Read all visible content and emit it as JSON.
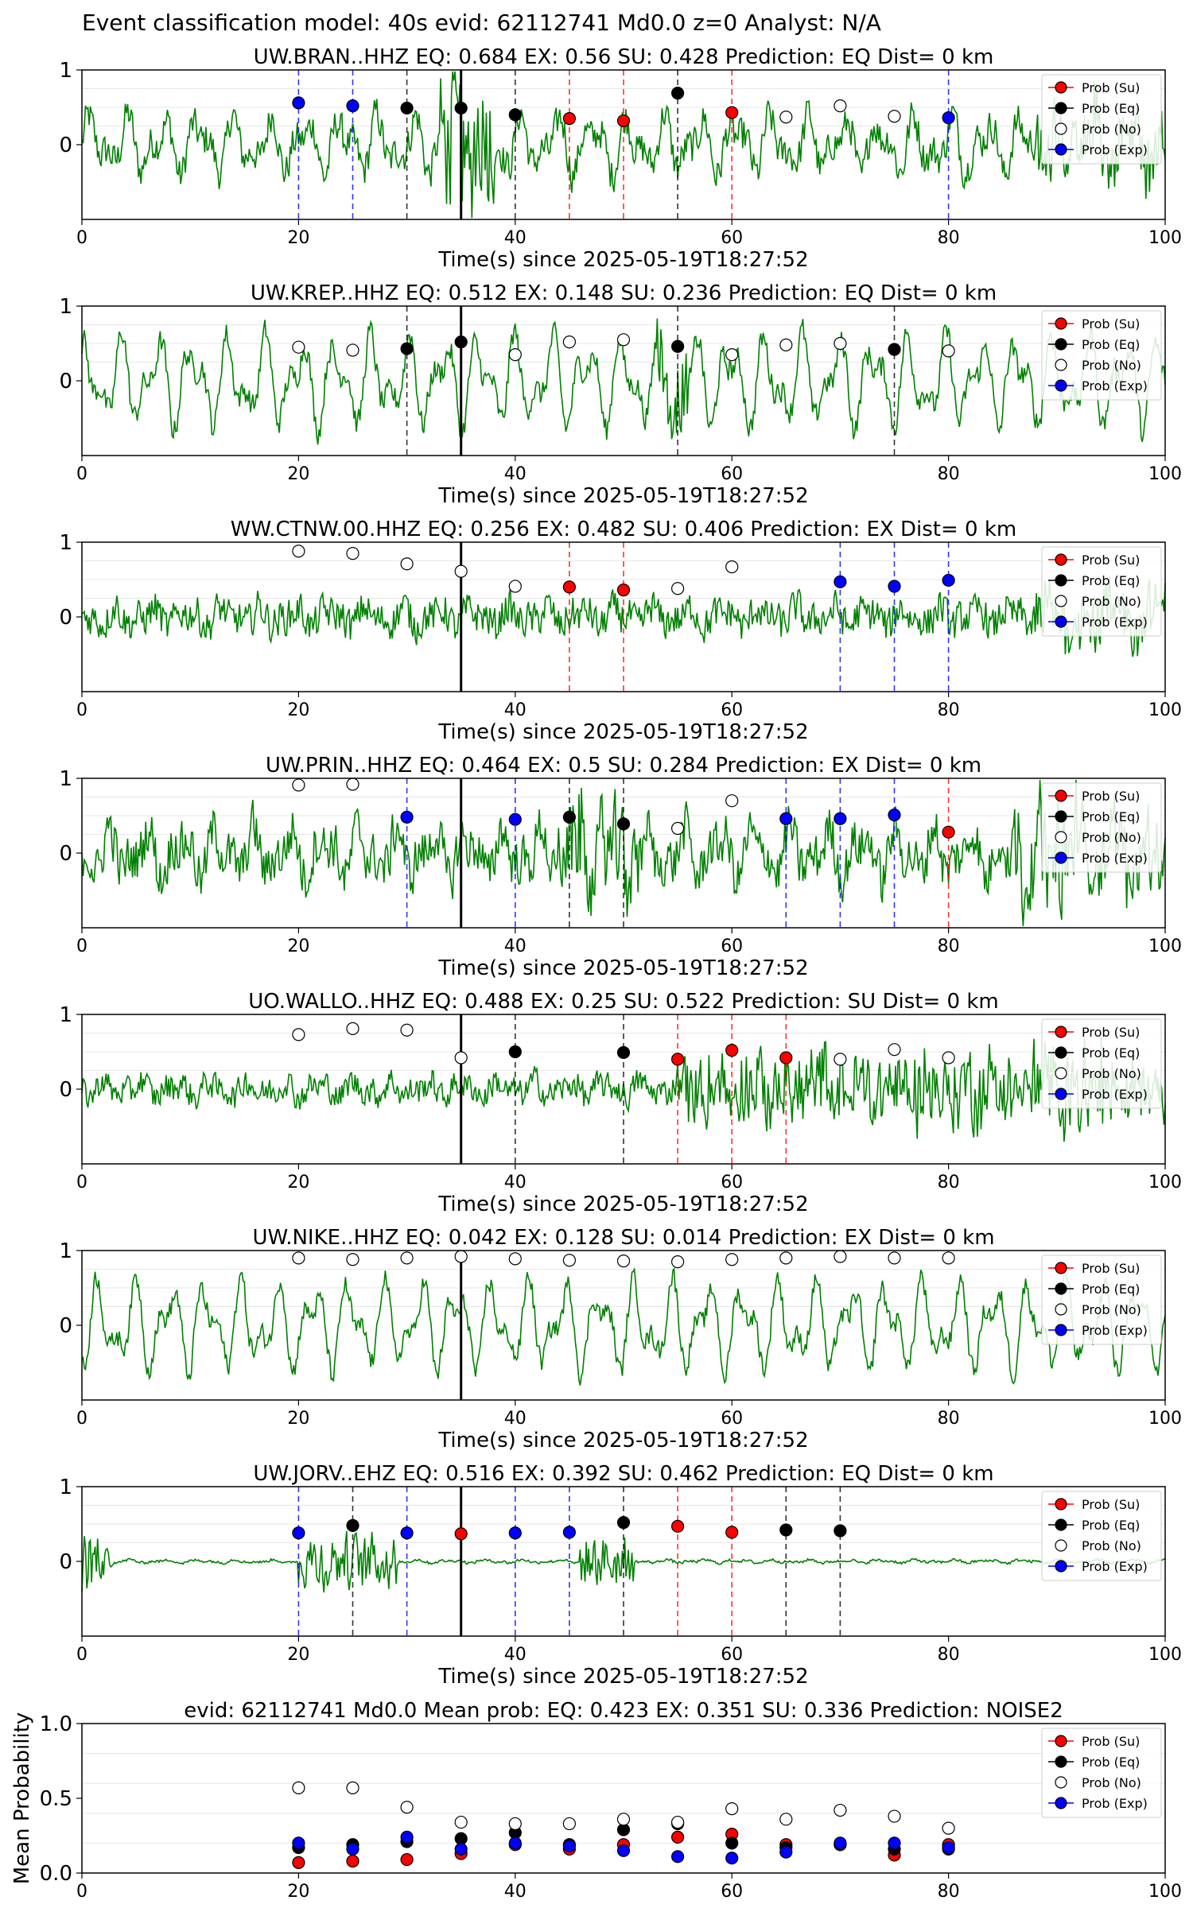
{
  "figure": {
    "suptitle": "Event classification model: 40s evid: 62112741 Md0.0 z=0 Analyst: N/A"
  },
  "colors": {
    "waveform": "#008000",
    "eq": "#000000",
    "su": "#ff0000",
    "exp": "#0000ff",
    "no": "#ffffff",
    "grid": "#e6e6e6",
    "origin_line": "#000000"
  },
  "legend_labels": [
    "Prob (Su)",
    "Prob (Eq)",
    "Prob (No)",
    "Prob (Exp)"
  ],
  "chart_data": [
    {
      "type": "line",
      "title": "UW.BRAN..HHZ   EQ: 0.684  EX: 0.56  SU: 0.428   Prediction: EQ    Dist= 0 km",
      "xlabel": "Time(s) since 2025-05-19T18:27:52",
      "xlim": [
        0,
        100
      ],
      "xticks": [
        0,
        20,
        40,
        60,
        80,
        100
      ],
      "yticks": [
        0,
        1
      ],
      "ylim": [
        -1,
        1
      ],
      "grid": true,
      "legend": "top-right",
      "origin_time": 35,
      "points": [
        {
          "x": 20,
          "y": 0.56,
          "cls": "exp"
        },
        {
          "x": 25,
          "y": 0.52,
          "cls": "exp"
        },
        {
          "x": 30,
          "y": 0.49,
          "cls": "eq"
        },
        {
          "x": 35,
          "y": 0.49,
          "cls": "eq"
        },
        {
          "x": 40,
          "y": 0.4,
          "cls": "eq"
        },
        {
          "x": 45,
          "y": 0.35,
          "cls": "su"
        },
        {
          "x": 50,
          "y": 0.32,
          "cls": "su"
        },
        {
          "x": 55,
          "y": 0.69,
          "cls": "eq"
        },
        {
          "x": 60,
          "y": 0.43,
          "cls": "su"
        },
        {
          "x": 65,
          "y": 0.37,
          "cls": "no"
        },
        {
          "x": 70,
          "y": 0.52,
          "cls": "no"
        },
        {
          "x": 75,
          "y": 0.38,
          "cls": "no"
        },
        {
          "x": 80,
          "y": 0.36,
          "cls": "exp"
        }
      ]
    },
    {
      "type": "line",
      "title": "UW.KREP..HHZ   EQ: 0.512  EX: 0.148  SU: 0.236   Prediction: EQ    Dist= 0 km",
      "xlabel": "Time(s) since 2025-05-19T18:27:52",
      "xlim": [
        0,
        100
      ],
      "xticks": [
        0,
        20,
        40,
        60,
        80,
        100
      ],
      "yticks": [
        0,
        1
      ],
      "ylim": [
        -1,
        1
      ],
      "grid": true,
      "legend": "top-right",
      "origin_time": 35,
      "points": [
        {
          "x": 20,
          "y": 0.45,
          "cls": "no"
        },
        {
          "x": 25,
          "y": 0.41,
          "cls": "no"
        },
        {
          "x": 30,
          "y": 0.43,
          "cls": "eq"
        },
        {
          "x": 35,
          "y": 0.52,
          "cls": "eq"
        },
        {
          "x": 40,
          "y": 0.35,
          "cls": "no"
        },
        {
          "x": 45,
          "y": 0.52,
          "cls": "no"
        },
        {
          "x": 50,
          "y": 0.55,
          "cls": "no"
        },
        {
          "x": 55,
          "y": 0.46,
          "cls": "eq"
        },
        {
          "x": 60,
          "y": 0.35,
          "cls": "no"
        },
        {
          "x": 65,
          "y": 0.48,
          "cls": "no"
        },
        {
          "x": 70,
          "y": 0.5,
          "cls": "no"
        },
        {
          "x": 75,
          "y": 0.42,
          "cls": "eq"
        },
        {
          "x": 80,
          "y": 0.4,
          "cls": "no"
        }
      ]
    },
    {
      "type": "line",
      "title": "WW.CTNW.00.HHZ   EQ: 0.256  EX: 0.482  SU: 0.406   Prediction: EX    Dist= 0 km",
      "xlabel": "Time(s) since 2025-05-19T18:27:52",
      "xlim": [
        0,
        100
      ],
      "xticks": [
        0,
        20,
        40,
        60,
        80,
        100
      ],
      "yticks": [
        0,
        1
      ],
      "ylim": [
        -1,
        1
      ],
      "grid": true,
      "legend": "top-right",
      "origin_time": 35,
      "points": [
        {
          "x": 20,
          "y": 0.88,
          "cls": "no"
        },
        {
          "x": 25,
          "y": 0.85,
          "cls": "no"
        },
        {
          "x": 30,
          "y": 0.71,
          "cls": "no"
        },
        {
          "x": 35,
          "y": 0.61,
          "cls": "no"
        },
        {
          "x": 40,
          "y": 0.41,
          "cls": "no"
        },
        {
          "x": 45,
          "y": 0.4,
          "cls": "su"
        },
        {
          "x": 50,
          "y": 0.36,
          "cls": "su"
        },
        {
          "x": 55,
          "y": 0.38,
          "cls": "no"
        },
        {
          "x": 60,
          "y": 0.67,
          "cls": "no"
        },
        {
          "x": 70,
          "y": 0.47,
          "cls": "exp"
        },
        {
          "x": 75,
          "y": 0.41,
          "cls": "exp"
        },
        {
          "x": 80,
          "y": 0.49,
          "cls": "exp"
        }
      ]
    },
    {
      "type": "line",
      "title": "UW.PRIN..HHZ   EQ: 0.464  EX: 0.5  SU: 0.284   Prediction: EX    Dist= 0 km",
      "xlabel": "Time(s) since 2025-05-19T18:27:52",
      "xlim": [
        0,
        100
      ],
      "xticks": [
        0,
        20,
        40,
        60,
        80,
        100
      ],
      "yticks": [
        0,
        1
      ],
      "ylim": [
        -1,
        1
      ],
      "grid": true,
      "legend": "top-right",
      "origin_time": 35,
      "points": [
        {
          "x": 20,
          "y": 0.91,
          "cls": "no"
        },
        {
          "x": 25,
          "y": 0.92,
          "cls": "no"
        },
        {
          "x": 30,
          "y": 0.48,
          "cls": "exp"
        },
        {
          "x": 40,
          "y": 0.45,
          "cls": "exp"
        },
        {
          "x": 45,
          "y": 0.48,
          "cls": "eq"
        },
        {
          "x": 50,
          "y": 0.39,
          "cls": "eq"
        },
        {
          "x": 55,
          "y": 0.33,
          "cls": "no"
        },
        {
          "x": 60,
          "y": 0.7,
          "cls": "no"
        },
        {
          "x": 65,
          "y": 0.46,
          "cls": "exp"
        },
        {
          "x": 70,
          "y": 0.46,
          "cls": "exp"
        },
        {
          "x": 75,
          "y": 0.51,
          "cls": "exp"
        },
        {
          "x": 80,
          "y": 0.28,
          "cls": "su"
        }
      ]
    },
    {
      "type": "line",
      "title": "UO.WALLO..HHZ   EQ: 0.488  EX: 0.25  SU: 0.522   Prediction: SU    Dist= 0 km",
      "xlabel": "Time(s) since 2025-05-19T18:27:52",
      "xlim": [
        0,
        100
      ],
      "xticks": [
        0,
        20,
        40,
        60,
        80,
        100
      ],
      "yticks": [
        0,
        1
      ],
      "ylim": [
        -1,
        1
      ],
      "grid": true,
      "legend": "top-right",
      "origin_time": 35,
      "points": [
        {
          "x": 20,
          "y": 0.73,
          "cls": "no"
        },
        {
          "x": 25,
          "y": 0.81,
          "cls": "no"
        },
        {
          "x": 30,
          "y": 0.79,
          "cls": "no"
        },
        {
          "x": 35,
          "y": 0.42,
          "cls": "no"
        },
        {
          "x": 40,
          "y": 0.5,
          "cls": "eq"
        },
        {
          "x": 50,
          "y": 0.49,
          "cls": "eq"
        },
        {
          "x": 55,
          "y": 0.4,
          "cls": "su"
        },
        {
          "x": 60,
          "y": 0.52,
          "cls": "su"
        },
        {
          "x": 65,
          "y": 0.42,
          "cls": "su"
        },
        {
          "x": 70,
          "y": 0.4,
          "cls": "no"
        },
        {
          "x": 75,
          "y": 0.53,
          "cls": "no"
        },
        {
          "x": 80,
          "y": 0.42,
          "cls": "no"
        }
      ]
    },
    {
      "type": "line",
      "title": "UW.NIKE..HHZ   EQ: 0.042  EX: 0.128  SU: 0.014   Prediction: EX    Dist= 0 km",
      "xlabel": "Time(s) since 2025-05-19T18:27:52",
      "xlim": [
        0,
        100
      ],
      "xticks": [
        0,
        20,
        40,
        60,
        80,
        100
      ],
      "yticks": [
        0,
        1
      ],
      "ylim": [
        -1,
        1
      ],
      "grid": true,
      "legend": "top-right",
      "origin_time": 35,
      "points": [
        {
          "x": 20,
          "y": 0.9,
          "cls": "no"
        },
        {
          "x": 25,
          "y": 0.88,
          "cls": "no"
        },
        {
          "x": 30,
          "y": 0.9,
          "cls": "no"
        },
        {
          "x": 35,
          "y": 0.92,
          "cls": "no"
        },
        {
          "x": 40,
          "y": 0.89,
          "cls": "no"
        },
        {
          "x": 45,
          "y": 0.87,
          "cls": "no"
        },
        {
          "x": 50,
          "y": 0.86,
          "cls": "no"
        },
        {
          "x": 55,
          "y": 0.85,
          "cls": "no"
        },
        {
          "x": 60,
          "y": 0.88,
          "cls": "no"
        },
        {
          "x": 65,
          "y": 0.9,
          "cls": "no"
        },
        {
          "x": 70,
          "y": 0.92,
          "cls": "no"
        },
        {
          "x": 75,
          "y": 0.9,
          "cls": "no"
        },
        {
          "x": 80,
          "y": 0.9,
          "cls": "no"
        }
      ]
    },
    {
      "type": "line",
      "title": "UW.JORV..EHZ   EQ: 0.516  EX: 0.392  SU: 0.462   Prediction: EQ    Dist= 0 km",
      "xlabel": "Time(s) since 2025-05-19T18:27:52",
      "xlim": [
        0,
        100
      ],
      "xticks": [
        0,
        20,
        40,
        60,
        80,
        100
      ],
      "yticks": [
        0,
        1
      ],
      "ylim": [
        -1,
        1
      ],
      "grid": true,
      "legend": "top-right",
      "origin_time": 35,
      "points": [
        {
          "x": 20,
          "y": 0.38,
          "cls": "exp"
        },
        {
          "x": 25,
          "y": 0.48,
          "cls": "eq"
        },
        {
          "x": 30,
          "y": 0.38,
          "cls": "exp"
        },
        {
          "x": 35,
          "y": 0.37,
          "cls": "su"
        },
        {
          "x": 40,
          "y": 0.38,
          "cls": "exp"
        },
        {
          "x": 45,
          "y": 0.39,
          "cls": "exp"
        },
        {
          "x": 50,
          "y": 0.52,
          "cls": "eq"
        },
        {
          "x": 55,
          "y": 0.47,
          "cls": "su"
        },
        {
          "x": 60,
          "y": 0.39,
          "cls": "su"
        },
        {
          "x": 65,
          "y": 0.42,
          "cls": "eq"
        },
        {
          "x": 70,
          "y": 0.41,
          "cls": "eq"
        }
      ]
    },
    {
      "type": "scatter",
      "title": "evid: 62112741  Md0.0   Mean prob:   EQ: 0.423  EX: 0.351  SU: 0.336   Prediction: NOISE2",
      "xlabel": "",
      "ylabel": "Mean Probability",
      "xlim": [
        0,
        100
      ],
      "xticks": [
        0,
        20,
        40,
        60,
        80,
        100
      ],
      "ylim": [
        0,
        1
      ],
      "yticks": [
        0.0,
        0.5,
        1.0
      ],
      "ytick_labels": [
        "0.0",
        "0.5",
        "1.0"
      ],
      "grid": true,
      "legend": "top-right",
      "x": [
        20,
        25,
        30,
        35,
        40,
        45,
        50,
        55,
        60,
        65,
        70,
        75,
        80
      ],
      "series": [
        {
          "name": "Prob (Su)",
          "cls": "su",
          "values": [
            0.07,
            0.08,
            0.09,
            0.13,
            0.19,
            0.16,
            0.19,
            0.24,
            0.26,
            0.19,
            0.19,
            0.12,
            0.19
          ]
        },
        {
          "name": "Prob (Eq)",
          "cls": "eq",
          "values": [
            0.17,
            0.19,
            0.21,
            0.23,
            0.27,
            0.19,
            0.29,
            0.33,
            0.2,
            0.17,
            0.19,
            0.16,
            0.16
          ]
        },
        {
          "name": "Prob (No)",
          "cls": "no",
          "values": [
            0.57,
            0.57,
            0.44,
            0.34,
            0.33,
            0.33,
            0.36,
            0.34,
            0.43,
            0.36,
            0.42,
            0.38,
            0.3
          ]
        },
        {
          "name": "Prob (Exp)",
          "cls": "exp",
          "values": [
            0.2,
            0.16,
            0.24,
            0.16,
            0.2,
            0.18,
            0.15,
            0.11,
            0.1,
            0.14,
            0.2,
            0.2,
            0.17
          ]
        }
      ]
    }
  ]
}
